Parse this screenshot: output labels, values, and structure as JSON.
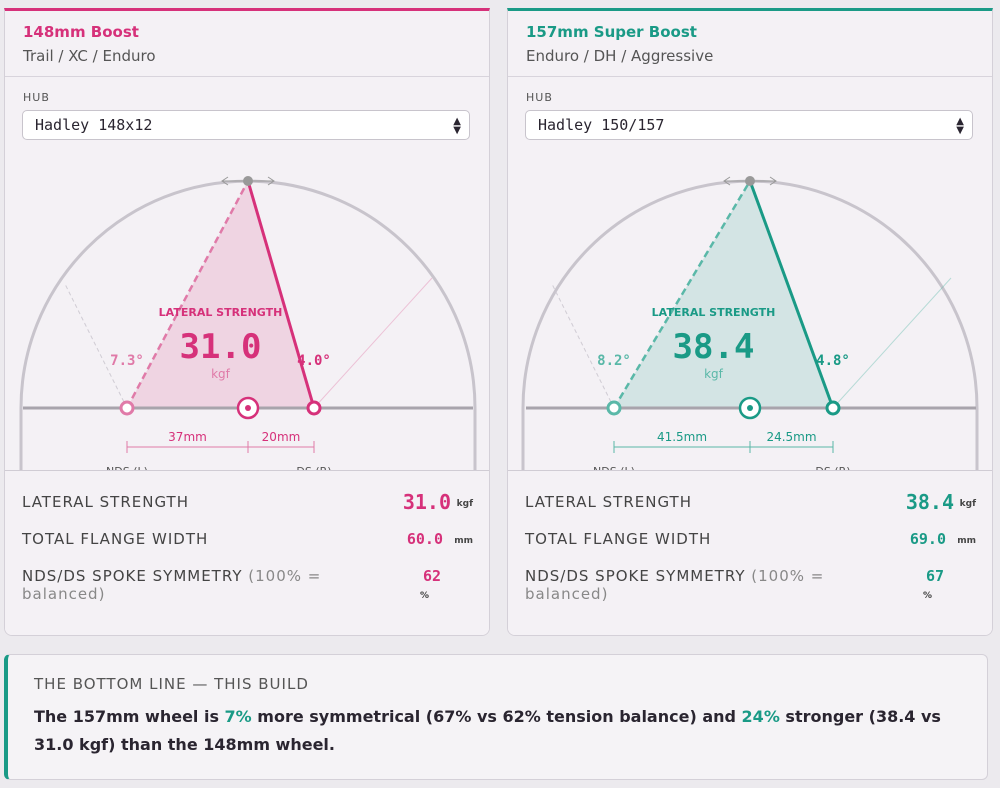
{
  "cards": [
    {
      "title": "148mm Boost",
      "subtitle": "Trail / XC / Enduro",
      "hub_label": "HUB",
      "hub": "Hadley 148x12",
      "diagram": {
        "strength_label": "LATERAL STRENGTH",
        "strength": "31.0",
        "unit": "kgf",
        "nds_angle": "7.3°",
        "ds_angle": "4.0°",
        "nds_width": "37mm",
        "ds_width": "20mm",
        "nds_label": "NDS (L)",
        "ds_label": "DS (R)"
      },
      "stats": [
        {
          "label": "LATERAL STRENGTH",
          "value": "31.0",
          "unit": "kgf"
        },
        {
          "label": "TOTAL FLANGE WIDTH",
          "value": "60.0",
          "unit": "mm"
        },
        {
          "label": "NDS/DS SPOKE SYMMETRY",
          "note": "(100% = balanced)",
          "value": "62",
          "unit": "%"
        }
      ]
    },
    {
      "title": "157mm Super Boost",
      "subtitle": "Enduro / DH / Aggressive",
      "hub_label": "HUB",
      "hub": "Hadley 150/157",
      "diagram": {
        "strength_label": "LATERAL STRENGTH",
        "strength": "38.4",
        "unit": "kgf",
        "nds_angle": "8.2°",
        "ds_angle": "4.8°",
        "nds_width": "41.5mm",
        "ds_width": "24.5mm",
        "nds_label": "NDS (L)",
        "ds_label": "DS (R)"
      },
      "stats": [
        {
          "label": "LATERAL STRENGTH",
          "value": "38.4",
          "unit": "kgf"
        },
        {
          "label": "TOTAL FLANGE WIDTH",
          "value": "69.0",
          "unit": "mm"
        },
        {
          "label": "NDS/DS SPOKE SYMMETRY",
          "note": "(100% = balanced)",
          "value": "67",
          "unit": "%"
        }
      ]
    }
  ],
  "bottom": {
    "title": "THE BOTTOM LINE — THIS BUILD",
    "parts": [
      "The 157mm wheel is ",
      "7%",
      " more symmetrical (67% vs 62% tension balance) and ",
      "24%",
      " stronger (38.4 vs 31.0 kgf) than the 148mm wheel."
    ]
  }
}
